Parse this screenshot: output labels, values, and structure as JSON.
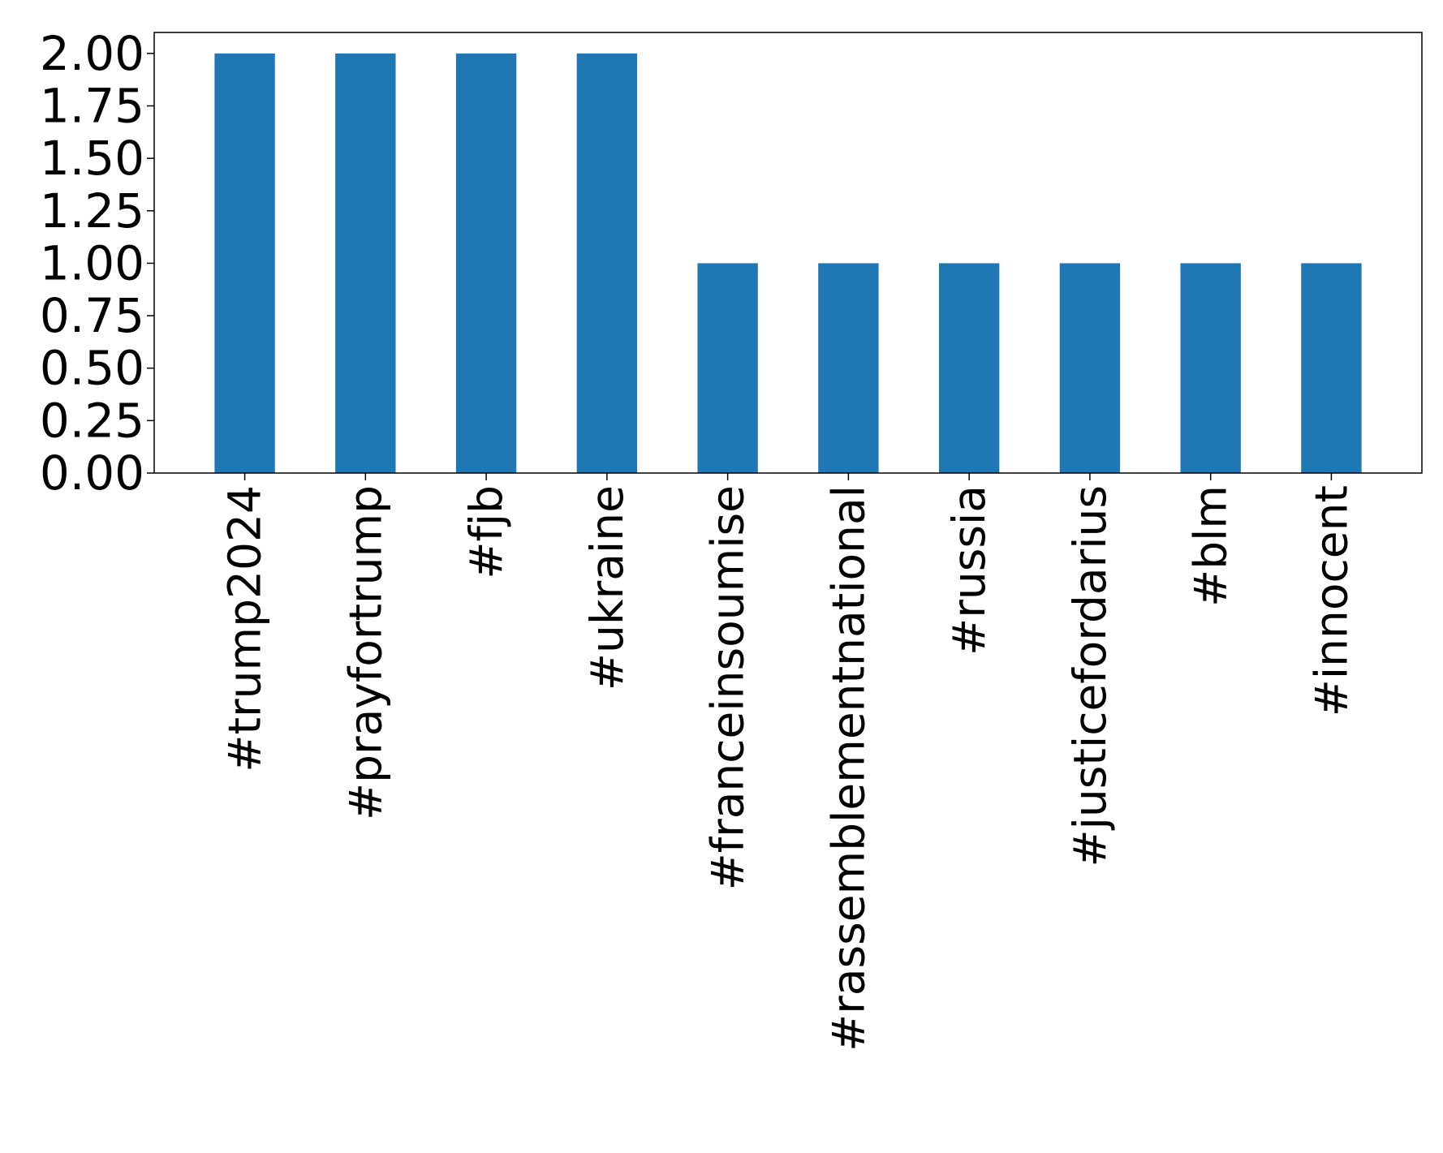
{
  "chart_data": {
    "type": "bar",
    "categories": [
      "#trump2024",
      "#prayfortrump",
      "#fjb",
      "#ukraine",
      "#franceinsoumise",
      "#rassemblementnational",
      "#russia",
      "#justicefordarius",
      "#blm",
      "#innocent"
    ],
    "values": [
      2,
      2,
      2,
      2,
      1,
      1,
      1,
      1,
      1,
      1
    ],
    "title": "",
    "xlabel": "",
    "ylabel": "",
    "ylim": [
      0,
      2.1
    ],
    "yticks": [
      0.0,
      0.25,
      0.5,
      0.75,
      1.0,
      1.25,
      1.5,
      1.75,
      2.0
    ],
    "ytick_labels": [
      "0.00",
      "0.25",
      "0.50",
      "0.75",
      "1.00",
      "1.25",
      "1.50",
      "1.75",
      "2.00"
    ],
    "bar_color": "#1f77b4",
    "grid": false,
    "legend": "none"
  }
}
